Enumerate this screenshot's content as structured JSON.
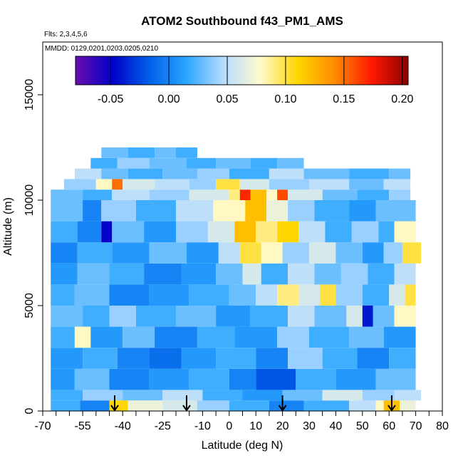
{
  "chart_data": {
    "type": "heatmap",
    "title": "ATOM2 Southbound f43_PM1_AMS",
    "subtitle_flights": "Flts: 2,3,4,5,6",
    "subtitle_dates": "MMDD: 0129,0201,0203,0205,0210",
    "xlabel": "Latitude (deg N)",
    "ylabel": "Altitude (m)",
    "xlim": [
      -70,
      80
    ],
    "ylim": [
      0,
      17500
    ],
    "x_ticks": [
      -70,
      -55,
      -40,
      -25,
      -10,
      0,
      10,
      20,
      30,
      40,
      50,
      60,
      70,
      80
    ],
    "x_tick_labels": [
      "-70",
      "-55",
      "-40",
      "-25",
      "-10",
      "0",
      "10",
      "20",
      "30",
      "40",
      "50",
      "60",
      "70",
      "80"
    ],
    "x_minor_ticks": [
      -65,
      -60,
      -50,
      -45,
      -35,
      -30,
      -20,
      -15,
      -5,
      5,
      15,
      25,
      35,
      45,
      55,
      65,
      75
    ],
    "y_ticks": [
      0,
      5000,
      10000,
      15000
    ],
    "y_tick_labels": [
      "0",
      "5000",
      "10000",
      "15000"
    ],
    "colorbar": {
      "range": [
        -0.08,
        0.205
      ],
      "ticks": [
        -0.05,
        0.0,
        0.05,
        0.1,
        0.15,
        0.2
      ],
      "tick_labels": [
        "-0.05",
        "0.00",
        "0.05",
        "0.10",
        "0.15",
        "0.20"
      ],
      "colors": [
        "#6a0dad",
        "#0000c8",
        "#0060e8",
        "#2aa5ff",
        "#b6dcff",
        "#fffacd",
        "#ffd700",
        "#ff8c00",
        "#ff1a00",
        "#8b0000"
      ]
    },
    "flight_date_arrows_lat": [
      -43,
      -16,
      20,
      61
    ],
    "layers": [
      {
        "y0": 0,
        "y1": 500,
        "x0": -67,
        "x1": 70,
        "segments": [
          [
            -67,
            0.02
          ],
          [
            -56,
            0.0
          ],
          [
            -45,
            0.11
          ],
          [
            -38,
            0.07
          ],
          [
            -25,
            0.06
          ],
          [
            -12,
            0.04
          ],
          [
            0,
            0.02
          ],
          [
            15,
            0.0
          ],
          [
            28,
            0.02
          ],
          [
            45,
            0.05
          ],
          [
            55,
            0.08
          ],
          [
            58,
            0.12
          ],
          [
            64,
            0.07
          ]
        ]
      },
      {
        "y0": 500,
        "y1": 1000,
        "x0": -67,
        "x1": 72,
        "segments": [
          [
            -67,
            0.02
          ],
          [
            -55,
            0.04
          ],
          [
            -40,
            0.03
          ],
          [
            -25,
            0.05
          ],
          [
            -10,
            0.02
          ],
          [
            5,
            0.01
          ],
          [
            20,
            0.03
          ],
          [
            35,
            0.06
          ],
          [
            50,
            0.04
          ],
          [
            62,
            0.05
          ]
        ]
      },
      {
        "y0": 1000,
        "y1": 2000,
        "x0": -67,
        "x1": 70,
        "segments": [
          [
            -67,
            0.01
          ],
          [
            -58,
            0.03
          ],
          [
            -45,
            0.0
          ],
          [
            -30,
            0.01
          ],
          [
            -15,
            0.02
          ],
          [
            0,
            0.0
          ],
          [
            10,
            -0.02
          ],
          [
            25,
            0.02
          ],
          [
            40,
            0.01
          ],
          [
            55,
            0.03
          ]
        ]
      },
      {
        "y0": 2000,
        "y1": 3000,
        "x0": -67,
        "x1": 70,
        "segments": [
          [
            -67,
            0.01
          ],
          [
            -55,
            0.02
          ],
          [
            -42,
            0.0
          ],
          [
            -30,
            -0.01
          ],
          [
            -18,
            0.01
          ],
          [
            -5,
            0.02
          ],
          [
            10,
            0.0
          ],
          [
            22,
            0.04
          ],
          [
            35,
            0.02
          ],
          [
            48,
            0.0
          ],
          [
            60,
            0.02
          ]
        ]
      },
      {
        "y0": 3000,
        "y1": 4000,
        "x0": -67,
        "x1": 70,
        "segments": [
          [
            -67,
            0.02
          ],
          [
            -58,
            0.08
          ],
          [
            -52,
            0.01
          ],
          [
            -40,
            0.03
          ],
          [
            -28,
            0.0
          ],
          [
            -12,
            0.02
          ],
          [
            2,
            0.01
          ],
          [
            18,
            0.04
          ],
          [
            30,
            0.02
          ],
          [
            45,
            0.03
          ],
          [
            58,
            0.01
          ]
        ]
      },
      {
        "y0": 4000,
        "y1": 5000,
        "x0": -67,
        "x1": 70,
        "segments": [
          [
            -67,
            0.03
          ],
          [
            -55,
            0.02
          ],
          [
            -45,
            0.04
          ],
          [
            -35,
            0.02
          ],
          [
            -20,
            0.03
          ],
          [
            -5,
            0.01
          ],
          [
            8,
            0.02
          ],
          [
            22,
            0.05
          ],
          [
            32,
            0.03
          ],
          [
            44,
            0.06
          ],
          [
            50,
            -0.04
          ],
          [
            54,
            0.03
          ],
          [
            62,
            0.08
          ]
        ]
      },
      {
        "y0": 5000,
        "y1": 6000,
        "x0": -67,
        "x1": 70,
        "segments": [
          [
            -67,
            0.02
          ],
          [
            -58,
            0.03
          ],
          [
            -45,
            0.0
          ],
          [
            -30,
            0.01
          ],
          [
            -15,
            0.02
          ],
          [
            0,
            0.03
          ],
          [
            10,
            0.05
          ],
          [
            18,
            0.09
          ],
          [
            26,
            0.06
          ],
          [
            34,
            0.1
          ],
          [
            40,
            0.04
          ],
          [
            50,
            0.02
          ],
          [
            60,
            0.06
          ],
          [
            66,
            0.1
          ]
        ]
      },
      {
        "y0": 6000,
        "y1": 7000,
        "x0": -67,
        "x1": 70,
        "segments": [
          [
            -67,
            0.01
          ],
          [
            -57,
            0.03
          ],
          [
            -45,
            0.02
          ],
          [
            -32,
            0.0
          ],
          [
            -18,
            0.01
          ],
          [
            -5,
            0.03
          ],
          [
            5,
            0.06
          ],
          [
            12,
            0.02
          ],
          [
            22,
            0.05
          ],
          [
            32,
            0.03
          ],
          [
            42,
            0.04
          ],
          [
            52,
            0.02
          ],
          [
            62,
            0.05
          ]
        ]
      },
      {
        "y0": 7000,
        "y1": 8000,
        "x0": -67,
        "x1": 72,
        "segments": [
          [
            -67,
            0.0
          ],
          [
            -57,
            0.02
          ],
          [
            -44,
            0.01
          ],
          [
            -30,
            0.03
          ],
          [
            -16,
            0.01
          ],
          [
            -4,
            0.05
          ],
          [
            4,
            0.1
          ],
          [
            12,
            0.08
          ],
          [
            20,
            0.04
          ],
          [
            30,
            0.06
          ],
          [
            40,
            0.03
          ],
          [
            50,
            0.01
          ],
          [
            58,
            0.04
          ],
          [
            65,
            0.1
          ]
        ]
      },
      {
        "y0": 8000,
        "y1": 9000,
        "x0": -67,
        "x1": 70,
        "segments": [
          [
            -67,
            0.02
          ],
          [
            -57,
            0.0
          ],
          [
            -48,
            -0.05
          ],
          [
            -44,
            0.03
          ],
          [
            -32,
            0.01
          ],
          [
            -20,
            0.04
          ],
          [
            -8,
            0.06
          ],
          [
            2,
            0.12
          ],
          [
            10,
            0.09
          ],
          [
            18,
            0.11
          ],
          [
            26,
            0.05
          ],
          [
            36,
            0.02
          ],
          [
            46,
            0.04
          ],
          [
            56,
            0.02
          ],
          [
            62,
            0.08
          ]
        ]
      },
      {
        "y0": 9000,
        "y1": 10000,
        "x0": -67,
        "x1": 70,
        "segments": [
          [
            -67,
            0.03
          ],
          [
            -55,
            0.0
          ],
          [
            -48,
            0.04
          ],
          [
            -35,
            0.02
          ],
          [
            -20,
            0.05
          ],
          [
            -6,
            0.08
          ],
          [
            6,
            0.12
          ],
          [
            14,
            0.07
          ],
          [
            22,
            0.04
          ],
          [
            32,
            0.02
          ],
          [
            45,
            0.01
          ],
          [
            55,
            0.03
          ]
        ]
      },
      {
        "y0": 10000,
        "y1": 10500,
        "x0": -67,
        "x1": 68,
        "segments": [
          [
            -67,
            0.03
          ],
          [
            -55,
            0.02
          ],
          [
            -44,
            0.05
          ],
          [
            -30,
            0.04
          ],
          [
            -15,
            0.06
          ],
          [
            0,
            0.09
          ],
          [
            4,
            0.17
          ],
          [
            8,
            0.12
          ],
          [
            14,
            0.08
          ],
          [
            18,
            0.16
          ],
          [
            22,
            0.06
          ],
          [
            35,
            0.03
          ],
          [
            48,
            0.02
          ],
          [
            60,
            0.04
          ]
        ]
      },
      {
        "y0": 10500,
        "y1": 11000,
        "x0": -62,
        "x1": 68,
        "segments": [
          [
            -62,
            0.04
          ],
          [
            -50,
            0.08
          ],
          [
            -44,
            0.15
          ],
          [
            -40,
            0.06
          ],
          [
            -28,
            0.05
          ],
          [
            -15,
            0.04
          ],
          [
            -5,
            0.1
          ],
          [
            4,
            0.06
          ],
          [
            15,
            0.04
          ],
          [
            30,
            0.05
          ],
          [
            45,
            0.03
          ],
          [
            58,
            0.05
          ]
        ]
      },
      {
        "y0": 11000,
        "y1": 11500,
        "x0": -58,
        "x1": 68,
        "segments": [
          [
            -58,
            0.05
          ],
          [
            -48,
            0.03
          ],
          [
            -38,
            0.02
          ],
          [
            -25,
            0.03
          ],
          [
            -12,
            0.04
          ],
          [
            0,
            0.02
          ],
          [
            15,
            0.05
          ],
          [
            28,
            0.03
          ],
          [
            45,
            0.02
          ],
          [
            60,
            0.03
          ]
        ]
      },
      {
        "y0": 11500,
        "y1": 12000,
        "x0": -52,
        "x1": 28,
        "segments": [
          [
            -52,
            0.02
          ],
          [
            -42,
            0.04
          ],
          [
            -30,
            0.03
          ],
          [
            -16,
            0.02
          ],
          [
            -5,
            0.03
          ],
          [
            8,
            0.02
          ],
          [
            18,
            0.03
          ]
        ]
      },
      {
        "y0": 12000,
        "y1": 12500,
        "x0": -48,
        "x1": -12,
        "segments": [
          [
            -48,
            0.03
          ],
          [
            -38,
            0.02
          ],
          [
            -28,
            0.03
          ],
          [
            -20,
            0.02
          ]
        ]
      }
    ]
  }
}
